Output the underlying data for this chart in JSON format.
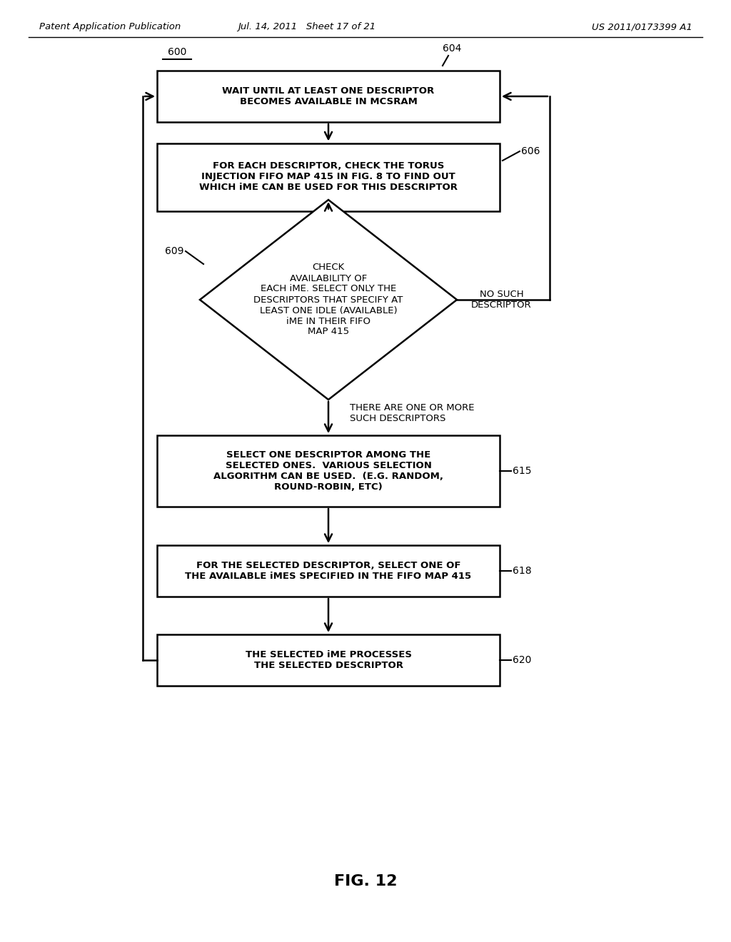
{
  "bg_color": "#ffffff",
  "header_left": "Patent Application Publication",
  "header_mid": "Jul. 14, 2011   Sheet 17 of 21",
  "header_right": "US 2011/0173399 A1",
  "fig_label": "FIG. 12",
  "label_600": "600",
  "label_604": "604",
  "label_606": "606",
  "label_609": "609",
  "label_615": "615",
  "label_618": "618",
  "label_620": "620",
  "box1_text": "WAIT UNTIL AT LEAST ONE DESCRIPTOR\nBECOMES AVAILABLE IN MCSRAM",
  "box2_text": "FOR EACH DESCRIPTOR, CHECK THE TORUS\nINJECTION FIFO MAP 415 IN FIG. 8 TO FIND OUT\nWHICH iME CAN BE USED FOR THIS DESCRIPTOR",
  "diamond_text": "CHECK\nAVAILABILITY OF\nEACH iME. SELECT ONLY THE\nDESCRIPTORS THAT SPECIFY AT\nLEAST ONE IDLE (AVAILABLE)\niME IN THEIR FIFO\nMAP 415",
  "box3_text": "SELECT ONE DESCRIPTOR AMONG THE\nSELECTED ONES.  VARIOUS SELECTION\nALGORITHM CAN BE USED.  (E.G. RANDOM,\nROUND-ROBIN, ETC)",
  "box4_text": "FOR THE SELECTED DESCRIPTOR, SELECT ONE OF\nTHE AVAILABLE iMES SPECIFIED IN THE FIFO MAP 415",
  "box5_text": "THE SELECTED iME PROCESSES\nTHE SELECTED DESCRIPTOR",
  "label_no_such": "NO SUCH\nDESCRIPTOR",
  "label_there_are": "THERE ARE ONE OR MORE\nSUCH DESCRIPTORS"
}
